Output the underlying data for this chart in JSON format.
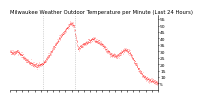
{
  "title": "Milwaukee Weather Outdoor Temperature per Minute (Last 24 Hours)",
  "title_fontsize": 3.8,
  "line_color": "#ff0000",
  "bg_color": "#ffffff",
  "ylim": [
    0,
    58
  ],
  "yticks": [
    5,
    10,
    15,
    20,
    25,
    30,
    35,
    40,
    45,
    50,
    55
  ],
  "ytick_fontsize": 3.2,
  "xtick_fontsize": 3.0,
  "vline_positions": [
    0.22,
    0.44
  ],
  "vline_color": "#b0b0b0",
  "num_points": 1440,
  "x_num_ticks": 25,
  "curve_knots": [
    [
      0.0,
      30
    ],
    [
      0.02,
      29
    ],
    [
      0.05,
      30
    ],
    [
      0.08,
      27
    ],
    [
      0.11,
      23
    ],
    [
      0.15,
      20
    ],
    [
      0.18,
      19
    ],
    [
      0.22,
      20
    ],
    [
      0.27,
      28
    ],
    [
      0.31,
      36
    ],
    [
      0.35,
      43
    ],
    [
      0.39,
      49
    ],
    [
      0.41,
      52
    ],
    [
      0.43,
      50
    ],
    [
      0.44,
      44
    ],
    [
      0.45,
      38
    ],
    [
      0.46,
      32
    ],
    [
      0.48,
      34
    ],
    [
      0.5,
      36
    ],
    [
      0.52,
      37
    ],
    [
      0.54,
      38
    ],
    [
      0.56,
      40
    ],
    [
      0.58,
      38
    ],
    [
      0.6,
      37
    ],
    [
      0.62,
      35
    ],
    [
      0.64,
      33
    ],
    [
      0.66,
      30
    ],
    [
      0.69,
      27
    ],
    [
      0.72,
      26
    ],
    [
      0.74,
      28
    ],
    [
      0.76,
      30
    ],
    [
      0.78,
      31
    ],
    [
      0.8,
      30
    ],
    [
      0.82,
      27
    ],
    [
      0.84,
      22
    ],
    [
      0.86,
      18
    ],
    [
      0.88,
      14
    ],
    [
      0.9,
      11
    ],
    [
      0.92,
      9
    ],
    [
      0.94,
      8
    ],
    [
      0.96,
      7
    ],
    [
      0.98,
      6
    ],
    [
      1.0,
      5
    ]
  ]
}
